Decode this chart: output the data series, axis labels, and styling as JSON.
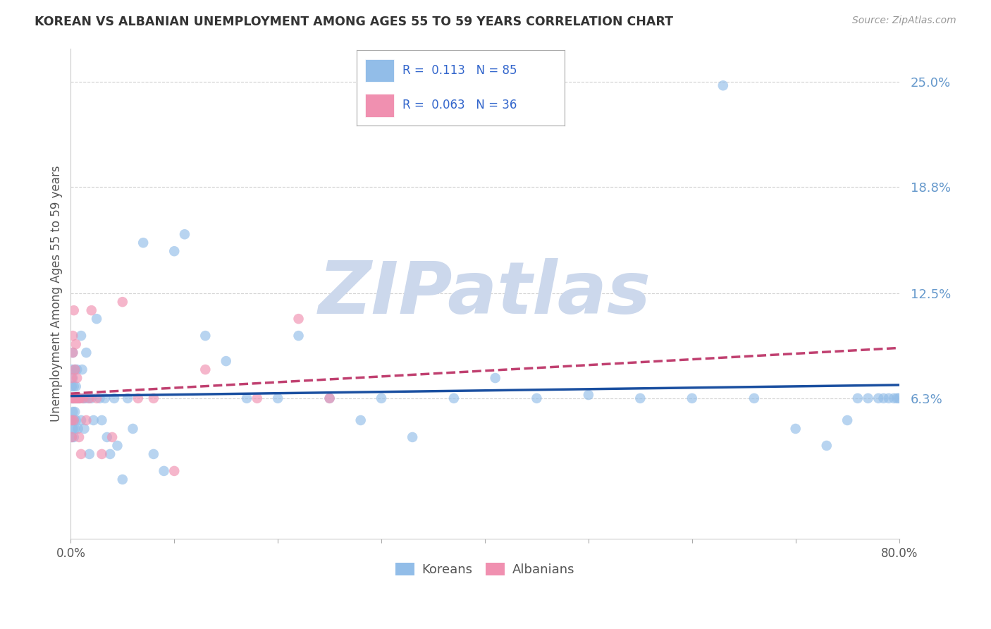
{
  "title": "KOREAN VS ALBANIAN UNEMPLOYMENT AMONG AGES 55 TO 59 YEARS CORRELATION CHART",
  "source": "Source: ZipAtlas.com",
  "ylabel": "Unemployment Among Ages 55 to 59 years",
  "xlim": [
    0.0,
    0.8
  ],
  "ylim": [
    -0.02,
    0.27
  ],
  "xtick_positions": [
    0.0,
    0.1,
    0.2,
    0.3,
    0.4,
    0.5,
    0.6,
    0.7,
    0.8
  ],
  "xticklabels": [
    "0.0%",
    "",
    "",
    "",
    "",
    "",
    "",
    "",
    "80.0%"
  ],
  "ytick_positions": [
    0.063,
    0.125,
    0.188,
    0.25
  ],
  "ytick_labels": [
    "6.3%",
    "12.5%",
    "18.8%",
    "25.0%"
  ],
  "korean_R": 0.113,
  "korean_N": 85,
  "albanian_R": 0.063,
  "albanian_N": 36,
  "korean_color": "#92bde8",
  "albanian_color": "#f090b0",
  "korean_trend_color": "#1a4fa0",
  "albanian_trend_color": "#c04070",
  "watermark": "ZIPatlas",
  "watermark_color": "#ccd8ec",
  "background_color": "#ffffff",
  "grid_color": "#cccccc",
  "right_label_color": "#6699cc",
  "title_color": "#333333",
  "source_color": "#999999",
  "ylabel_color": "#555555",
  "xtick_color": "#555555",
  "korean_x": [
    0.001,
    0.001,
    0.001,
    0.001,
    0.001,
    0.001,
    0.002,
    0.002,
    0.002,
    0.002,
    0.002,
    0.002,
    0.003,
    0.003,
    0.003,
    0.003,
    0.003,
    0.004,
    0.004,
    0.004,
    0.004,
    0.005,
    0.005,
    0.005,
    0.006,
    0.006,
    0.007,
    0.007,
    0.008,
    0.009,
    0.01,
    0.01,
    0.011,
    0.012,
    0.013,
    0.014,
    0.015,
    0.017,
    0.018,
    0.02,
    0.022,
    0.025,
    0.028,
    0.03,
    0.033,
    0.035,
    0.038,
    0.042,
    0.045,
    0.05,
    0.055,
    0.06,
    0.07,
    0.08,
    0.09,
    0.1,
    0.11,
    0.13,
    0.15,
    0.17,
    0.2,
    0.22,
    0.25,
    0.28,
    0.3,
    0.33,
    0.37,
    0.41,
    0.45,
    0.5,
    0.55,
    0.6,
    0.63,
    0.66,
    0.7,
    0.73,
    0.75,
    0.76,
    0.77,
    0.78,
    0.785,
    0.79,
    0.795,
    0.798,
    0.8
  ],
  "korean_y": [
    0.063,
    0.063,
    0.05,
    0.07,
    0.04,
    0.08,
    0.063,
    0.063,
    0.055,
    0.045,
    0.075,
    0.09,
    0.063,
    0.063,
    0.05,
    0.07,
    0.04,
    0.063,
    0.08,
    0.055,
    0.045,
    0.063,
    0.07,
    0.05,
    0.063,
    0.08,
    0.063,
    0.045,
    0.063,
    0.063,
    0.1,
    0.05,
    0.08,
    0.063,
    0.045,
    0.063,
    0.09,
    0.063,
    0.03,
    0.063,
    0.05,
    0.11,
    0.063,
    0.05,
    0.063,
    0.04,
    0.03,
    0.063,
    0.035,
    0.015,
    0.063,
    0.045,
    0.155,
    0.03,
    0.02,
    0.15,
    0.16,
    0.1,
    0.085,
    0.063,
    0.063,
    0.1,
    0.063,
    0.05,
    0.063,
    0.04,
    0.063,
    0.075,
    0.063,
    0.065,
    0.063,
    0.063,
    0.248,
    0.063,
    0.045,
    0.035,
    0.05,
    0.063,
    0.063,
    0.063,
    0.063,
    0.063,
    0.063,
    0.063,
    0.063
  ],
  "albanian_x": [
    0.001,
    0.001,
    0.001,
    0.001,
    0.002,
    0.002,
    0.002,
    0.003,
    0.003,
    0.003,
    0.004,
    0.004,
    0.005,
    0.005,
    0.006,
    0.006,
    0.007,
    0.008,
    0.008,
    0.009,
    0.01,
    0.012,
    0.015,
    0.018,
    0.02,
    0.025,
    0.03,
    0.04,
    0.05,
    0.065,
    0.08,
    0.1,
    0.13,
    0.18,
    0.22,
    0.25
  ],
  "albanian_y": [
    0.063,
    0.05,
    0.04,
    0.075,
    0.063,
    0.09,
    0.1,
    0.063,
    0.115,
    0.05,
    0.063,
    0.08,
    0.063,
    0.095,
    0.063,
    0.075,
    0.063,
    0.063,
    0.04,
    0.063,
    0.03,
    0.063,
    0.05,
    0.063,
    0.115,
    0.063,
    0.03,
    0.04,
    0.12,
    0.063,
    0.063,
    0.02,
    0.08,
    0.063,
    0.11,
    0.063
  ]
}
